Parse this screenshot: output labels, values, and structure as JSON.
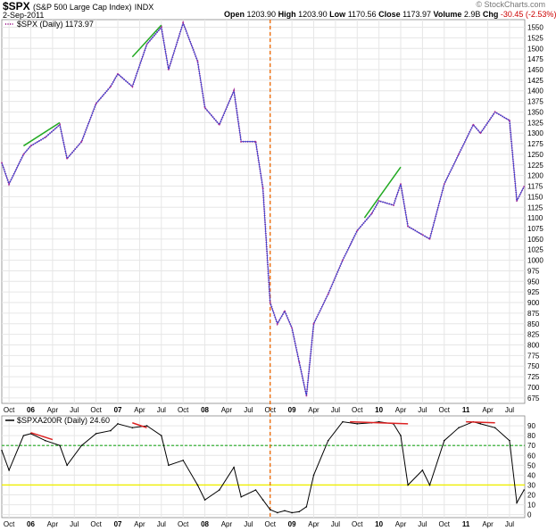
{
  "header": {
    "symbol": "$SPX",
    "name": "(S&P 500 Large Cap Index)",
    "exchange": "INDX",
    "date": "2-Sep-2011",
    "open_label": "Open",
    "open": "1203.90",
    "high_label": "High",
    "high": "1203.90",
    "low_label": "Low",
    "low": "1170.56",
    "close_label": "Close",
    "close": "1173.97",
    "volume_label": "Volume",
    "volume": "2.9B",
    "chg_label": "Chg",
    "chg": "-30.45 (-2.53%)",
    "brand": "© StockCharts.com"
  },
  "colors": {
    "price_line": "#2233cc",
    "price_dots": "#aa3399",
    "pct_line": "#000000",
    "vertical_marker": "#ee6600",
    "level_70": "#22aa22",
    "level_30": "#eeee00",
    "up_trend": "#22aa22",
    "down_trend": "#dd2222",
    "grid": "#e6e6e6"
  },
  "chart_data": [
    {
      "type": "line",
      "legend": "$SPX (Daily) 1173.97",
      "y_ticks": [
        675,
        700,
        725,
        750,
        775,
        800,
        825,
        850,
        875,
        900,
        925,
        950,
        975,
        1000,
        1025,
        1050,
        1075,
        1100,
        1125,
        1150,
        1175,
        1200,
        1225,
        1250,
        1275,
        1300,
        1325,
        1350,
        1375,
        1400,
        1425,
        1450,
        1475,
        1500,
        1525,
        1550
      ],
      "ylim": [
        662,
        1568
      ],
      "x": [
        "2005-09",
        "2005-10",
        "2005-12",
        "2006-01",
        "2006-03",
        "2006-05",
        "2006-06",
        "2006-08",
        "2006-10",
        "2006-12",
        "2007-01",
        "2007-03",
        "2007-05",
        "2007-07",
        "2007-08",
        "2007-10",
        "2007-12",
        "2008-01",
        "2008-03",
        "2008-05",
        "2008-06",
        "2008-08",
        "2008-09",
        "2008-10",
        "2008-11",
        "2008-12",
        "2009-01",
        "2009-02",
        "2009-03",
        "2009-04",
        "2009-06",
        "2009-08",
        "2009-10",
        "2009-12",
        "2010-01",
        "2010-03",
        "2010-04",
        "2010-05",
        "2010-07",
        "2010-08",
        "2010-10",
        "2010-12",
        "2011-02",
        "2011-03",
        "2011-05",
        "2011-07",
        "2011-08",
        "2011-09"
      ],
      "y": [
        1230,
        1180,
        1250,
        1270,
        1290,
        1320,
        1240,
        1280,
        1370,
        1410,
        1440,
        1410,
        1510,
        1550,
        1450,
        1560,
        1470,
        1360,
        1320,
        1400,
        1280,
        1280,
        1170,
        900,
        850,
        880,
        840,
        760,
        680,
        850,
        920,
        1000,
        1070,
        1110,
        1140,
        1130,
        1180,
        1080,
        1060,
        1050,
        1180,
        1250,
        1320,
        1300,
        1350,
        1330,
        1140,
        1174
      ],
      "annotations": {
        "up_trendlines": [
          [
            "2005-12",
            1270,
            "2006-05",
            1325
          ],
          [
            "2007-03",
            1480,
            "2007-07",
            1555
          ],
          [
            "2009-11",
            1100,
            "2010-04",
            1220
          ]
        ],
        "vertical_marker": "2008-10"
      }
    },
    {
      "type": "line",
      "legend": "$SPXA200R (Daily) 24.60",
      "y_ticks": [
        0,
        10,
        20,
        30,
        40,
        50,
        60,
        70,
        80,
        90
      ],
      "ylim": [
        -3,
        100
      ],
      "hlines": [
        70,
        30
      ],
      "x": [
        "2005-09",
        "2005-10",
        "2005-12",
        "2006-01",
        "2006-03",
        "2006-05",
        "2006-06",
        "2006-08",
        "2006-10",
        "2006-12",
        "2007-01",
        "2007-03",
        "2007-05",
        "2007-07",
        "2007-08",
        "2007-10",
        "2007-12",
        "2008-01",
        "2008-03",
        "2008-05",
        "2008-06",
        "2008-08",
        "2008-09",
        "2008-10",
        "2008-11",
        "2008-12",
        "2009-01",
        "2009-02",
        "2009-03",
        "2009-04",
        "2009-06",
        "2009-08",
        "2009-10",
        "2009-12",
        "2010-01",
        "2010-03",
        "2010-04",
        "2010-05",
        "2010-07",
        "2010-08",
        "2010-10",
        "2010-12",
        "2011-02",
        "2011-03",
        "2011-05",
        "2011-07",
        "2011-08",
        "2011-09"
      ],
      "y": [
        65,
        45,
        80,
        82,
        75,
        70,
        50,
        70,
        82,
        85,
        92,
        88,
        90,
        80,
        50,
        55,
        30,
        15,
        25,
        48,
        18,
        25,
        15,
        5,
        2,
        4,
        2,
        3,
        8,
        40,
        75,
        94,
        92,
        93,
        94,
        92,
        80,
        30,
        45,
        30,
        75,
        88,
        94,
        92,
        88,
        75,
        12,
        25
      ],
      "annotations": {
        "down_trendlines": [
          [
            "2006-01",
            83,
            "2006-04",
            76
          ],
          [
            "2007-03",
            93,
            "2007-05",
            88
          ],
          [
            "2009-09",
            94,
            "2010-05",
            92
          ],
          [
            "2011-01",
            94,
            "2011-05",
            93
          ]
        ]
      }
    }
  ],
  "x_axis_labels": [
    "Oct",
    "06",
    "Apr",
    "Jul",
    "Oct",
    "07",
    "Apr",
    "Jul",
    "Oct",
    "08",
    "Apr",
    "Jul",
    "Oct",
    "09",
    "Apr",
    "Jul",
    "Oct",
    "10",
    "Apr",
    "Jul",
    "Oct",
    "11",
    "Apr",
    "Jul"
  ]
}
